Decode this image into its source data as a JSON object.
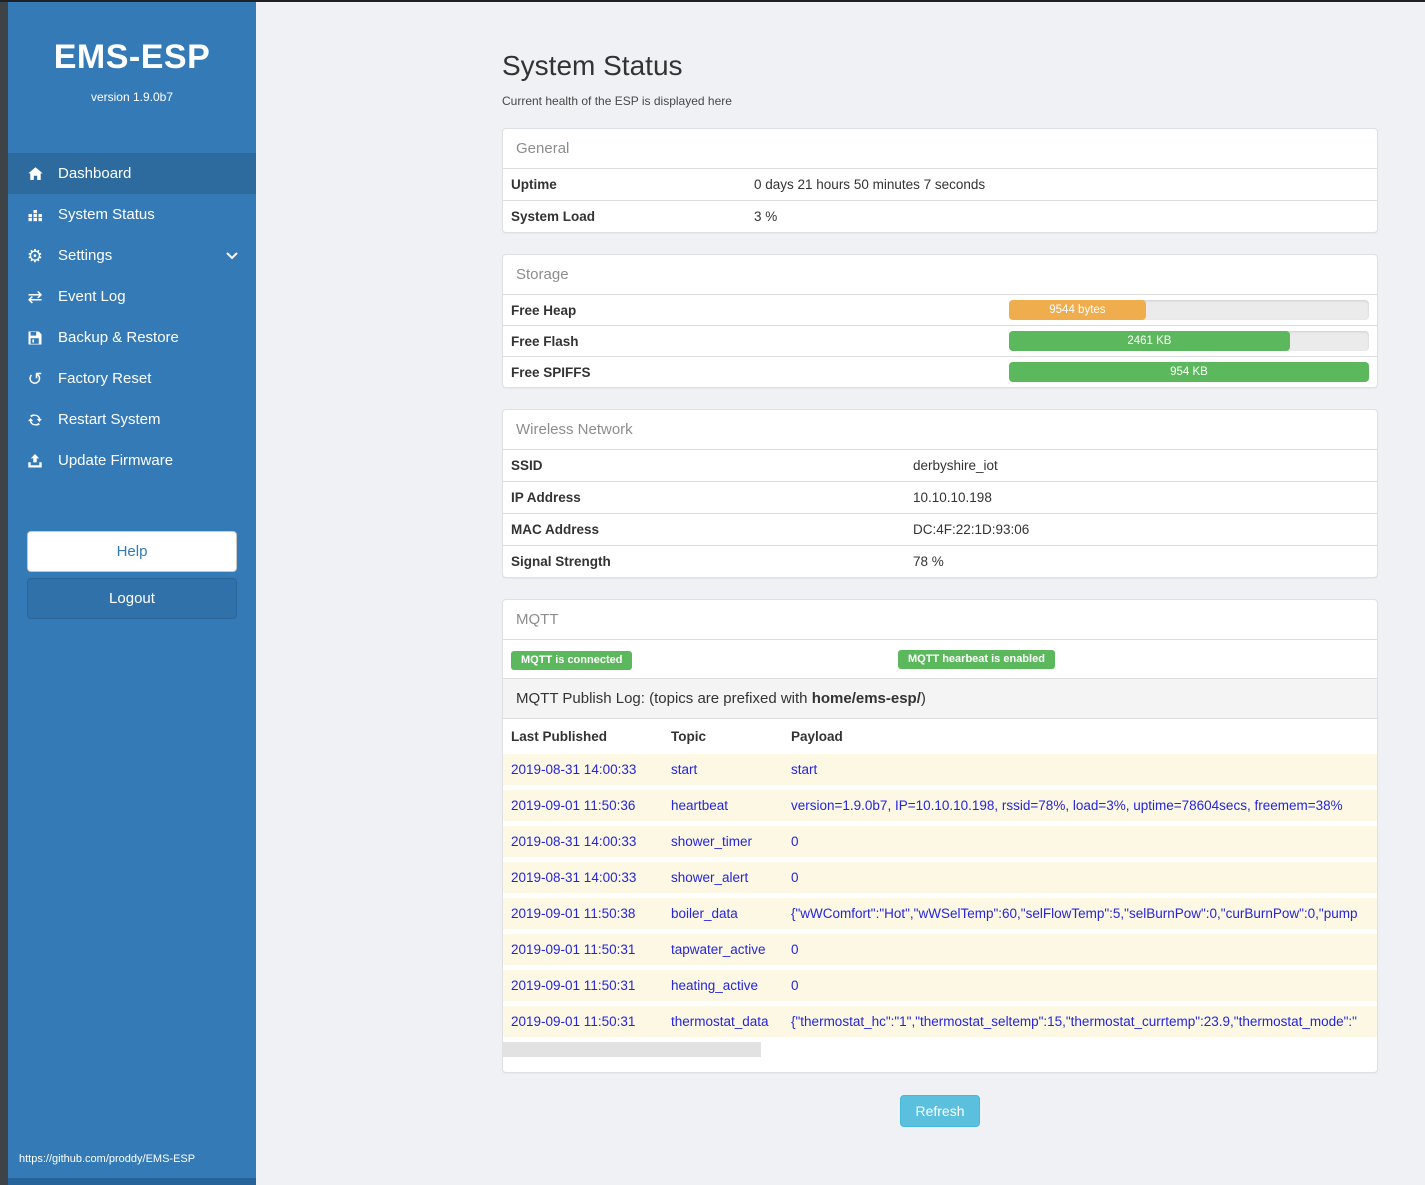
{
  "colors": {
    "sidebar_blue": "#337ab7",
    "active_item_blue": "#2d6a9e",
    "success_green": "#5cb85c",
    "warning_orange": "#f0ad4e",
    "info_blue": "#5bc0de",
    "log_text_blue": "#2525dd",
    "log_row_yellow": "#fcf8e3"
  },
  "sidebar": {
    "brand": "EMS-ESP",
    "version": "version 1.9.0b7",
    "items": [
      {
        "label": "Dashboard",
        "icon": "home-icon",
        "active": true
      },
      {
        "label": "System Status",
        "icon": "chart-icon",
        "active": false
      },
      {
        "label": "Settings",
        "icon": "gear-icon",
        "active": false,
        "has_submenu": true
      },
      {
        "label": "Event Log",
        "icon": "exchange-icon",
        "active": false
      },
      {
        "label": "Backup & Restore",
        "icon": "save-icon",
        "active": false
      },
      {
        "label": "Factory Reset",
        "icon": "undo-icon",
        "active": false
      },
      {
        "label": "Restart System",
        "icon": "refresh-icon",
        "active": false
      },
      {
        "label": "Update Firmware",
        "icon": "upload-icon",
        "active": false
      }
    ],
    "help_label": "Help",
    "logout_label": "Logout",
    "footer_link": "https://github.com/proddy/EMS-ESP"
  },
  "page": {
    "title": "System Status",
    "subtitle": "Current health of the ESP is displayed here",
    "refresh_label": "Refresh"
  },
  "general": {
    "header": "General",
    "rows": [
      {
        "label": "Uptime",
        "value": "0 days 21 hours 50 minutes 7 seconds"
      },
      {
        "label": "System Load",
        "value": "3 %"
      }
    ]
  },
  "storage": {
    "header": "Storage",
    "rows": [
      {
        "label": "Free Heap",
        "bar_label": "9544 bytes",
        "percent": 38,
        "color": "#f0ad4e"
      },
      {
        "label": "Free Flash",
        "bar_label": "2461 KB",
        "percent": 78,
        "color": "#5cb85c"
      },
      {
        "label": "Free SPIFFS",
        "bar_label": "954 KB",
        "percent": 100,
        "color": "#5cb85c"
      }
    ]
  },
  "wireless": {
    "header": "Wireless Network",
    "rows": [
      {
        "label": "SSID",
        "value": "derbyshire_iot"
      },
      {
        "label": "IP Address",
        "value": "10.10.10.198"
      },
      {
        "label": "MAC Address",
        "value": "DC:4F:22:1D:93:06"
      },
      {
        "label": "Signal Strength",
        "value": "78 %"
      }
    ]
  },
  "mqtt": {
    "header": "MQTT",
    "badges": [
      "MQTT is connected",
      "MQTT hearbeat is enabled"
    ],
    "publish_log": {
      "prefix": "MQTT Publish Log: (topics are prefixed with ",
      "bold": "home/ems-esp/",
      "suffix": ")"
    },
    "columns": [
      "Last Published",
      "Topic",
      "Payload"
    ],
    "rows": [
      {
        "date": "2019-08-31 14:00:33",
        "topic": "start",
        "payload": "start"
      },
      {
        "date": "2019-09-01 11:50:36",
        "topic": "heartbeat",
        "payload": "version=1.9.0b7, IP=10.10.10.198, rssid=78%, load=3%, uptime=78604secs, freemem=38%"
      },
      {
        "date": "2019-08-31 14:00:33",
        "topic": "shower_timer",
        "payload": "0"
      },
      {
        "date": "2019-08-31 14:00:33",
        "topic": "shower_alert",
        "payload": "0"
      },
      {
        "date": "2019-09-01 11:50:38",
        "topic": "boiler_data",
        "payload": "{\"wWComfort\":\"Hot\",\"wWSelTemp\":60,\"selFlowTemp\":5,\"selBurnPow\":0,\"curBurnPow\":0,\"pump"
      },
      {
        "date": "2019-09-01 11:50:31",
        "topic": "tapwater_active",
        "payload": "0"
      },
      {
        "date": "2019-09-01 11:50:31",
        "topic": "heating_active",
        "payload": "0"
      },
      {
        "date": "2019-09-01 11:50:31",
        "topic": "thermostat_data",
        "payload": "{\"thermostat_hc\":\"1\",\"thermostat_seltemp\":15,\"thermostat_currtemp\":23.9,\"thermostat_mode\":\""
      }
    ]
  }
}
